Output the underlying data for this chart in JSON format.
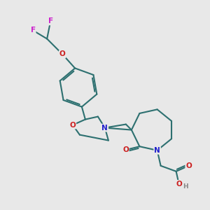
{
  "background_color": "#e8e8e8",
  "atom_colors": {
    "C": "#2d7070",
    "N": "#2020cc",
    "O": "#cc2020",
    "F": "#cc20cc",
    "H": "#888888"
  },
  "bond_color": "#2d7070",
  "bond_width": 1.5,
  "figsize": [
    3.0,
    3.0
  ],
  "dpi": 100
}
